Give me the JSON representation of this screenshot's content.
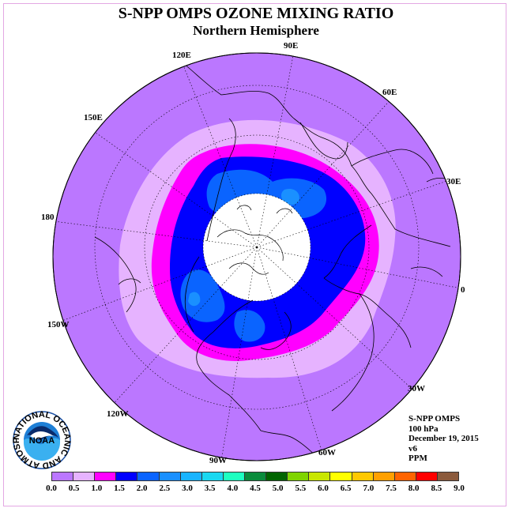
{
  "title": "S-NPP OMPS OZONE MIXING RATIO",
  "subtitle": "Northern Hemisphere",
  "longitude_labels": {
    "e90": "90E",
    "e60": "60E",
    "e30": "30E",
    "e0": "0",
    "w30": "30W",
    "w60": "60W",
    "w90": "90W",
    "w120": "120W",
    "w150": "150W",
    "e180": "180",
    "e150": "150E",
    "e120": "120E"
  },
  "info": {
    "instrument": "S-NPP OMPS",
    "level": "100 hPa",
    "date": "December 19, 2015",
    "version": "v6",
    "units": "PPM"
  },
  "logo": {
    "text": "NOAA",
    "ring_text": "NATIONAL OCEANIC AND ATMOSPHERIC ADMINISTRATION · U.S. DEPARTMENT OF COMMERCE"
  },
  "colorbar": {
    "colors": [
      "#bb77ff",
      "#e6b3ff",
      "#ff00ff",
      "#0000ff",
      "#0a64ff",
      "#1a90ff",
      "#19b4ff",
      "#1ad8f0",
      "#1effc0",
      "#0a8c3c",
      "#006400",
      "#7fd400",
      "#c8e600",
      "#ffff00",
      "#ffc800",
      "#ffa000",
      "#ff6400",
      "#ff0000",
      "#8b5a3c"
    ],
    "ticks": [
      "0.0",
      "0.5",
      "1.0",
      "1.5",
      "2.0",
      "2.5",
      "3.0",
      "3.5",
      "4.0",
      "4.5",
      "5.0",
      "5.5",
      "6.0",
      "6.5",
      "7.0",
      "7.5",
      "8.0",
      "8.5",
      "9.0"
    ]
  }
}
